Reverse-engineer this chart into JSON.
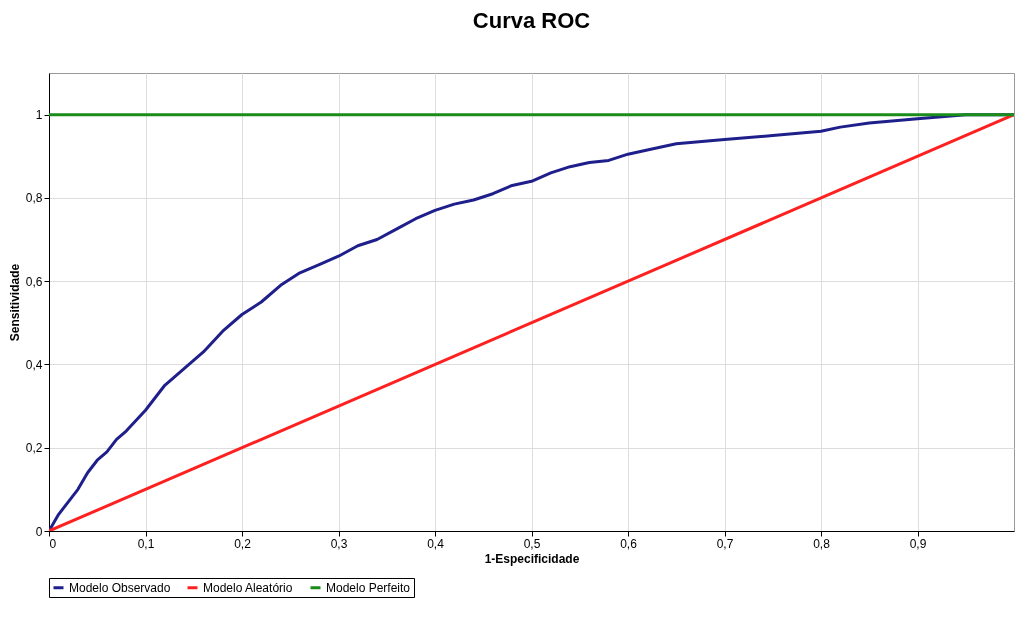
{
  "chart_data": {
    "type": "line",
    "title": "Curva ROC",
    "xlabel": "1-Especificidade",
    "ylabel": "Sensitividade",
    "xlim": [
      0,
      1
    ],
    "ylim": [
      0,
      1.1
    ],
    "xticks": [
      0,
      {
        "value": 0.1,
        "label": "0,1"
      },
      {
        "value": 0.2,
        "label": "0,2"
      },
      {
        "value": 0.3,
        "label": "0,3"
      },
      {
        "value": 0.4,
        "label": "0,4"
      },
      {
        "value": 0.5,
        "label": "0,5"
      },
      {
        "value": 0.6,
        "label": "0,6"
      },
      {
        "value": 0.7,
        "label": "0,7"
      },
      {
        "value": 0.8,
        "label": "0,8"
      },
      {
        "value": 0.9,
        "label": "0,9"
      }
    ],
    "yticks": [
      0,
      {
        "value": 0.2,
        "label": "0,2"
      },
      {
        "value": 0.4,
        "label": "0,4"
      },
      {
        "value": 0.6,
        "label": "0,6"
      },
      {
        "value": 0.8,
        "label": "0,8"
      },
      1
    ],
    "grid": true,
    "legend": "bottom",
    "marker": "none",
    "line_style": "solid",
    "series": [
      {
        "name": "Modelo Observado",
        "color": "#1f1f8c",
        "x": [
          0,
          0.01,
          0.02,
          0.03,
          0.04,
          0.05,
          0.06,
          0.07,
          0.08,
          0.1,
          0.12,
          0.14,
          0.16,
          0.18,
          0.2,
          0.22,
          0.24,
          0.26,
          0.28,
          0.3,
          0.32,
          0.34,
          0.36,
          0.38,
          0.4,
          0.42,
          0.44,
          0.46,
          0.48,
          0.5,
          0.52,
          0.54,
          0.56,
          0.58,
          0.6,
          0.62,
          0.65,
          0.7,
          0.75,
          0.8,
          0.82,
          0.85,
          0.9,
          0.95,
          1
        ],
        "values": [
          0,
          0.04,
          0.07,
          0.1,
          0.14,
          0.17,
          0.19,
          0.22,
          0.24,
          0.29,
          0.35,
          0.39,
          0.43,
          0.48,
          0.52,
          0.55,
          0.59,
          0.62,
          0.64,
          0.66,
          0.685,
          0.7,
          0.725,
          0.75,
          0.77,
          0.785,
          0.795,
          0.81,
          0.83,
          0.84,
          0.86,
          0.875,
          0.885,
          0.89,
          0.905,
          0.915,
          0.93,
          0.94,
          0.95,
          0.96,
          0.97,
          0.98,
          0.99,
          1,
          1
        ]
      },
      {
        "name": "Modelo Aleatório",
        "color": "#ff2020",
        "x": [
          0,
          1
        ],
        "values": [
          0,
          1
        ]
      },
      {
        "name": "Modelo Perfeito",
        "color": "#1a8c1a",
        "x": [
          0,
          1
        ],
        "values": [
          1,
          1
        ]
      }
    ]
  }
}
